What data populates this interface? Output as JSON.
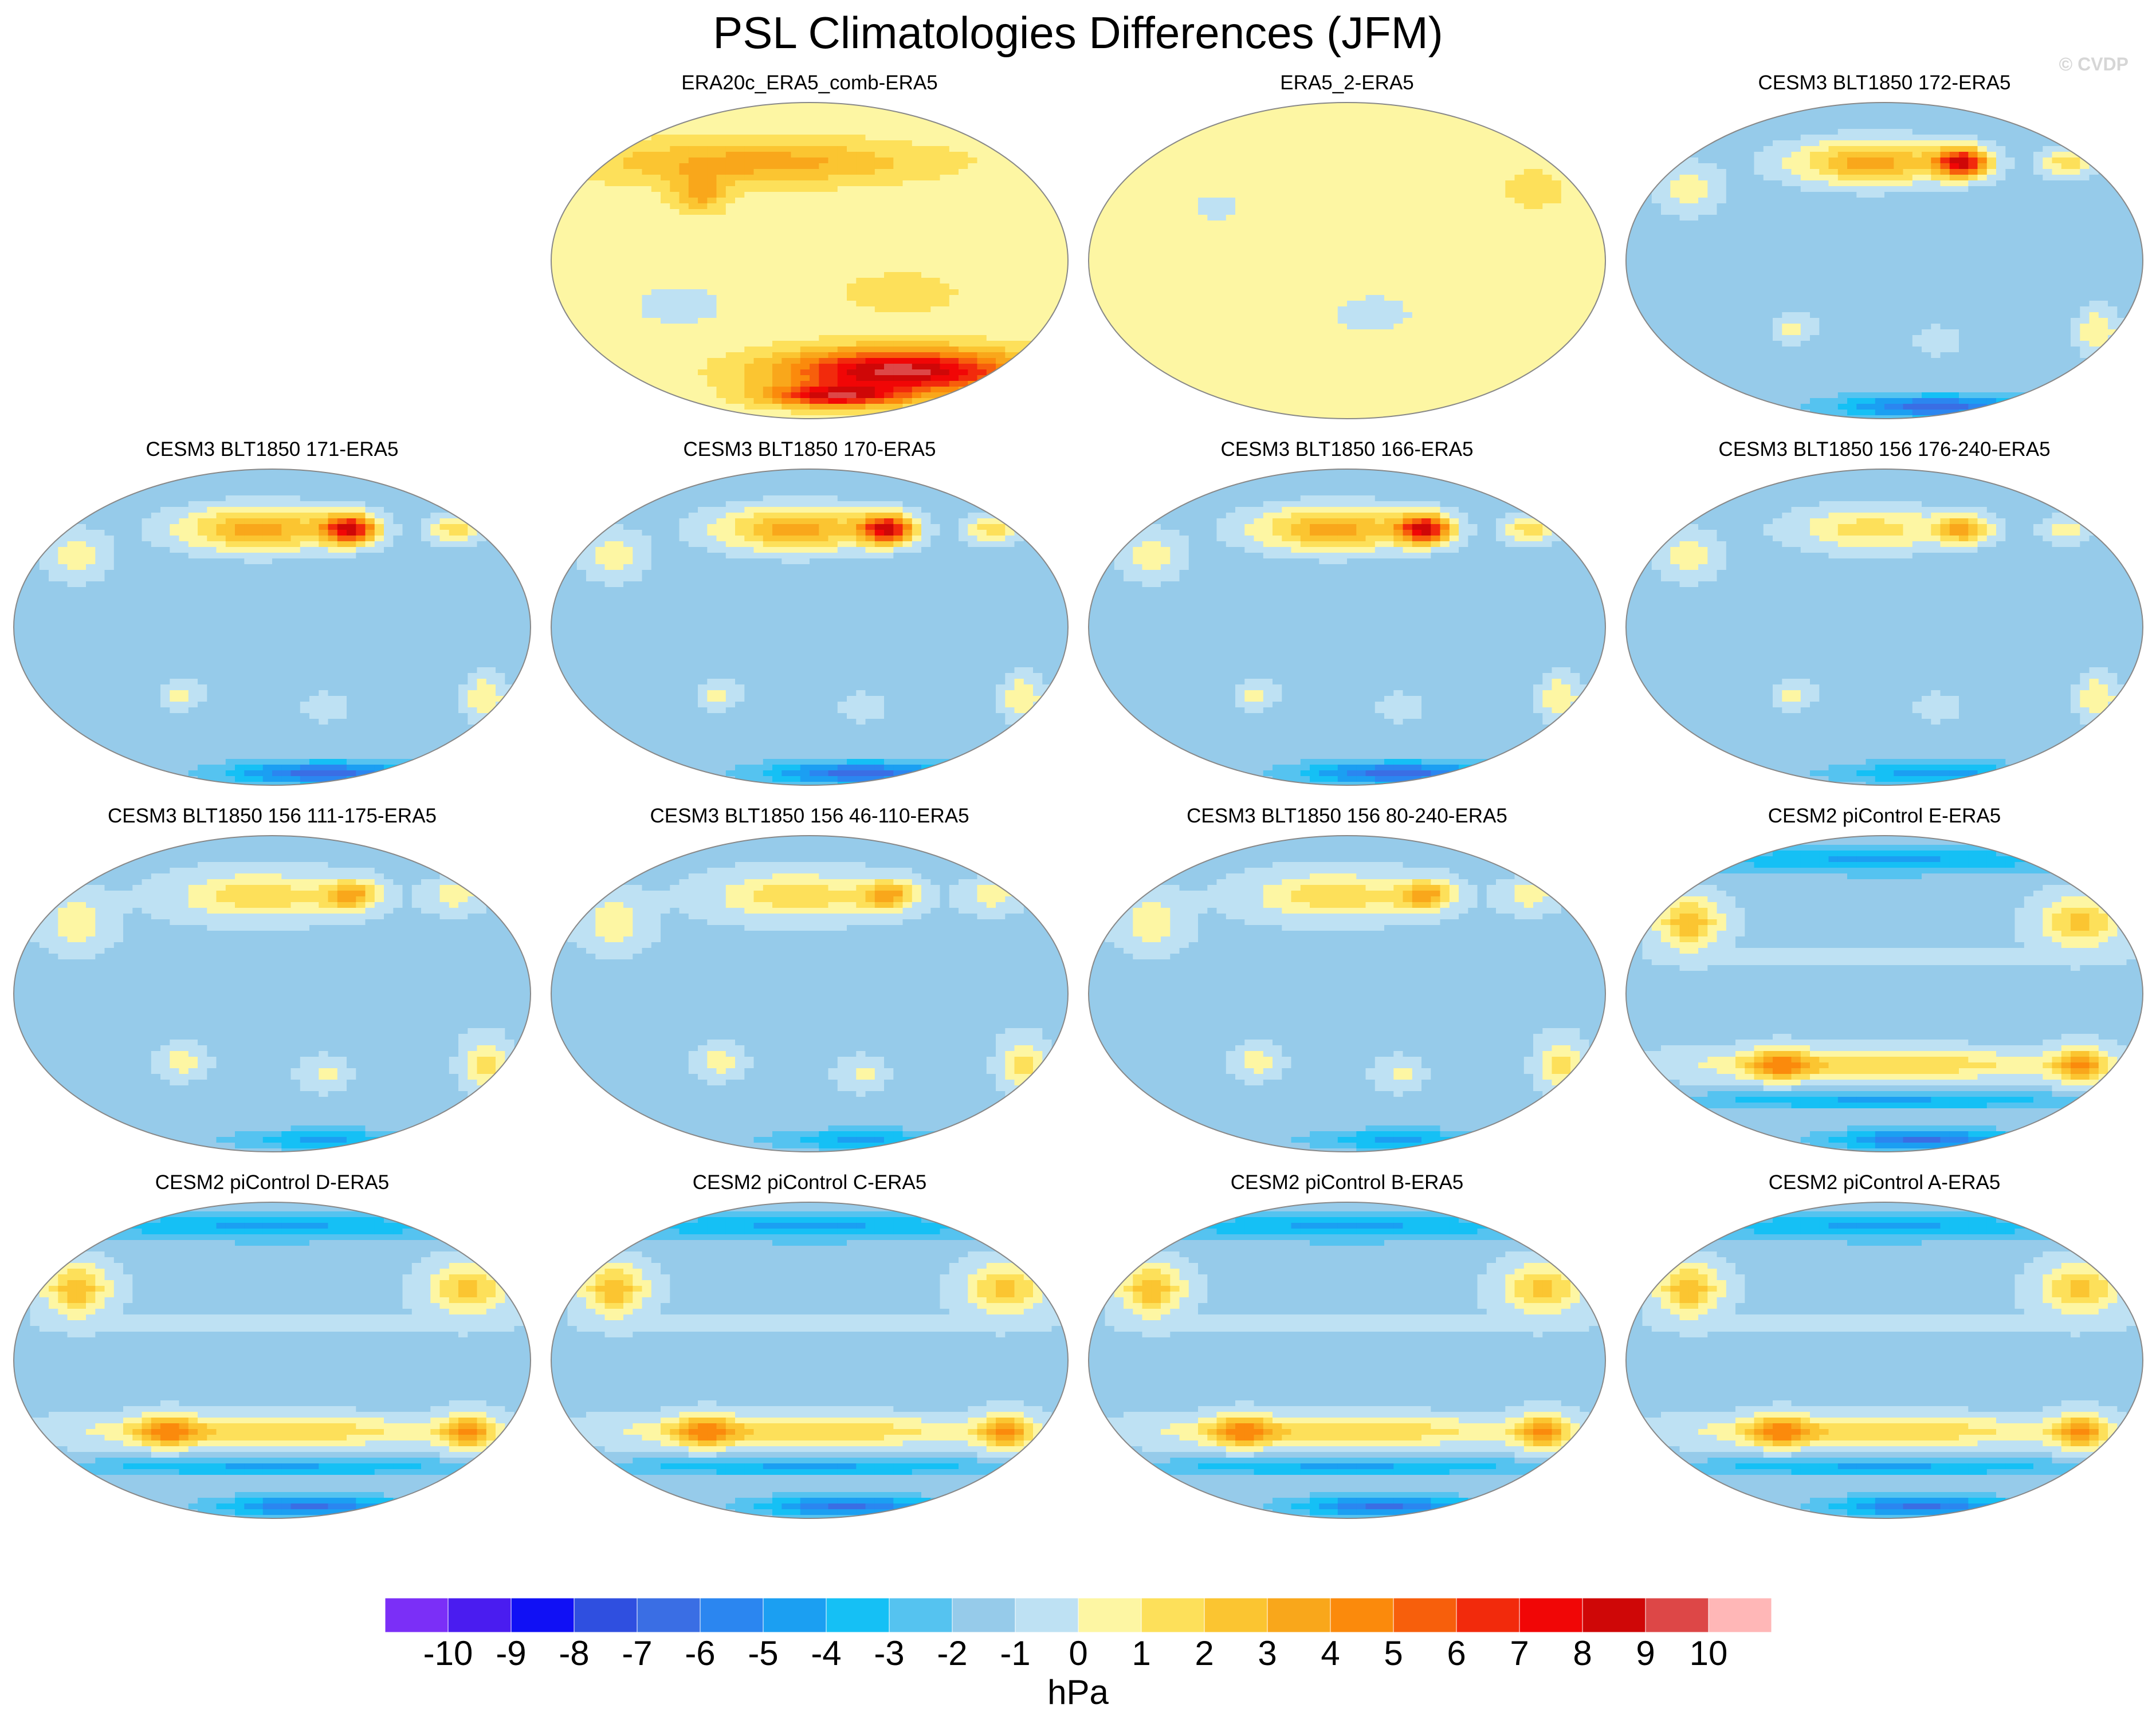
{
  "title": "PSL Climatologies Differences (JFM)",
  "watermark": "© CVDP",
  "chart_data": {
    "type": "heatmap",
    "title": "PSL Climatologies Differences (JFM)",
    "projection": "robinson",
    "central_longitude": 180,
    "season": "JFM",
    "grid": false,
    "colorbar": {
      "units": "hPa",
      "orientation": "horizontal",
      "placement": "bottom",
      "levels": [
        -10,
        -9,
        -8,
        -7,
        -6,
        -5,
        -4,
        -3,
        -2,
        -1,
        0,
        1,
        2,
        3,
        4,
        5,
        6,
        7,
        8,
        9,
        10
      ],
      "colors": [
        "#7b2ff7",
        "#4a1cf0",
        "#1010f5",
        "#2f4fe0",
        "#3a6ee4",
        "#2b86f0",
        "#1b9ff2",
        "#15c0f5",
        "#55c3f0",
        "#96cbea",
        "#bee1f3",
        "#fdf6a3",
        "#fde05a",
        "#fbc531",
        "#f9a71b",
        "#fb8a0c",
        "#f75f0c",
        "#f22a0c",
        "#f10606",
        "#cf0707",
        "#dd4747",
        "#ffb7b7"
      ]
    },
    "panels": [
      {
        "label": "ERA20c_ERA5_comb-ERA5",
        "background": 0.5,
        "features": [
          [
            -0.2,
            55,
            0.62,
            12,
            3
          ],
          [
            0.35,
            -62,
            0.45,
            12,
            9
          ],
          [
            0.1,
            -76,
            0.25,
            6,
            7
          ],
          [
            0.35,
            -18,
            0.2,
            10,
            1.5
          ],
          [
            -0.5,
            -25,
            0.15,
            10,
            -1.5
          ],
          [
            -0.42,
            38,
            0.1,
            10,
            3
          ]
        ]
      },
      {
        "label": "ERA5_2-ERA5",
        "background": 0.5,
        "features": [
          [
            0.1,
            -30,
            0.2,
            14,
            -0.8
          ],
          [
            -0.5,
            30,
            0.2,
            16,
            -0.6
          ],
          [
            0.72,
            40,
            0.1,
            10,
            1.5
          ]
        ]
      },
      {
        "label": "CESM3 BLT1850 172-ERA5",
        "background": -1.5,
        "features": [
          [
            -0.05,
            55,
            0.3,
            12,
            5
          ],
          [
            0.3,
            55,
            0.1,
            8,
            9
          ],
          [
            0.7,
            55,
            0.1,
            8,
            3
          ],
          [
            -0.75,
            40,
            0.12,
            14,
            2
          ],
          [
            -0.35,
            -38,
            0.08,
            8,
            2
          ],
          [
            0.2,
            -45,
            0.08,
            8,
            1.5
          ],
          [
            0.82,
            -40,
            0.08,
            14,
            2.5
          ],
          [
            0.2,
            -82,
            0.35,
            6,
            -5
          ]
        ]
      },
      {
        "label": "CESM3 BLT1850 171-ERA5",
        "background": -1.5,
        "features": [
          [
            -0.05,
            55,
            0.3,
            12,
            5
          ],
          [
            0.3,
            55,
            0.1,
            8,
            9
          ],
          [
            0.7,
            55,
            0.1,
            8,
            3
          ],
          [
            -0.75,
            40,
            0.12,
            14,
            2
          ],
          [
            -0.35,
            -38,
            0.08,
            8,
            2
          ],
          [
            0.2,
            -45,
            0.08,
            8,
            1.5
          ],
          [
            0.82,
            -40,
            0.08,
            14,
            2.5
          ],
          [
            0.2,
            -82,
            0.35,
            6,
            -5
          ]
        ]
      },
      {
        "label": "CESM3 BLT1850 170-ERA5",
        "background": -1.5,
        "features": [
          [
            -0.05,
            55,
            0.3,
            12,
            5
          ],
          [
            0.3,
            55,
            0.1,
            8,
            9
          ],
          [
            0.7,
            55,
            0.1,
            8,
            3
          ],
          [
            -0.75,
            40,
            0.12,
            14,
            2
          ],
          [
            -0.35,
            -38,
            0.08,
            8,
            2
          ],
          [
            0.2,
            -45,
            0.08,
            8,
            1.5
          ],
          [
            0.82,
            -40,
            0.08,
            14,
            2.5
          ],
          [
            0.2,
            -82,
            0.35,
            6,
            -5
          ]
        ]
      },
      {
        "label": "CESM3 BLT1850 166-ERA5",
        "background": -1.5,
        "features": [
          [
            -0.05,
            55,
            0.3,
            12,
            5
          ],
          [
            0.3,
            55,
            0.1,
            8,
            9
          ],
          [
            0.7,
            55,
            0.1,
            8,
            3
          ],
          [
            -0.75,
            40,
            0.12,
            14,
            2
          ],
          [
            -0.35,
            -38,
            0.08,
            8,
            2
          ],
          [
            0.2,
            -45,
            0.08,
            8,
            1.5
          ],
          [
            0.82,
            -40,
            0.08,
            14,
            2.5
          ],
          [
            0.2,
            -82,
            0.35,
            6,
            -5
          ]
        ]
      },
      {
        "label": "CESM3 BLT1850 156 176-240-ERA5",
        "background": -1.5,
        "features": [
          [
            -0.05,
            55,
            0.3,
            12,
            3
          ],
          [
            0.3,
            55,
            0.1,
            8,
            4.5
          ],
          [
            0.7,
            55,
            0.1,
            8,
            2
          ],
          [
            -0.75,
            40,
            0.12,
            14,
            2
          ],
          [
            -0.35,
            -38,
            0.08,
            8,
            2
          ],
          [
            0.2,
            -45,
            0.08,
            8,
            1.5
          ],
          [
            0.82,
            -40,
            0.08,
            14,
            2.5
          ],
          [
            0.2,
            -82,
            0.35,
            6,
            -3
          ]
        ]
      },
      {
        "label": "CESM3 BLT1850 156 111-175-ERA5",
        "background": -1.2,
        "features": [
          [
            -0.05,
            55,
            0.3,
            12,
            3
          ],
          [
            0.3,
            55,
            0.1,
            8,
            4.5
          ],
          [
            0.7,
            55,
            0.1,
            8,
            2
          ],
          [
            -0.75,
            40,
            0.12,
            14,
            2
          ],
          [
            -0.35,
            -38,
            0.08,
            8,
            2
          ],
          [
            0.2,
            -45,
            0.08,
            8,
            1.5
          ],
          [
            0.82,
            -40,
            0.08,
            14,
            2.5
          ],
          [
            0.2,
            -82,
            0.35,
            6,
            -3
          ]
        ]
      },
      {
        "label": "CESM3 BLT1850 156 46-110-ERA5",
        "background": -1.2,
        "features": [
          [
            -0.05,
            55,
            0.3,
            12,
            3
          ],
          [
            0.3,
            55,
            0.1,
            8,
            4.5
          ],
          [
            0.7,
            55,
            0.1,
            8,
            2
          ],
          [
            -0.75,
            40,
            0.12,
            14,
            2
          ],
          [
            -0.35,
            -38,
            0.08,
            8,
            2
          ],
          [
            0.2,
            -45,
            0.08,
            8,
            1.5
          ],
          [
            0.82,
            -40,
            0.08,
            14,
            2.5
          ],
          [
            0.2,
            -82,
            0.35,
            6,
            -3
          ]
        ]
      },
      {
        "label": "CESM3 BLT1850 156 80-240-ERA5",
        "background": -1.2,
        "features": [
          [
            -0.05,
            55,
            0.3,
            12,
            3
          ],
          [
            0.3,
            55,
            0.1,
            8,
            4.5
          ],
          [
            0.7,
            55,
            0.1,
            8,
            2
          ],
          [
            -0.75,
            40,
            0.12,
            14,
            2
          ],
          [
            -0.35,
            -38,
            0.08,
            8,
            2
          ],
          [
            0.2,
            -45,
            0.08,
            8,
            1.5
          ],
          [
            0.82,
            -40,
            0.08,
            14,
            2.5
          ],
          [
            0.2,
            -82,
            0.35,
            6,
            -3
          ]
        ]
      },
      {
        "label": "CESM2 piControl E-ERA5",
        "background": -1.2,
        "features": [
          [
            0,
            75,
            0.8,
            8,
            -3
          ],
          [
            -0.75,
            40,
            0.12,
            14,
            4
          ],
          [
            0.75,
            40,
            0.15,
            14,
            3.5
          ],
          [
            0,
            20,
            0.8,
            5,
            0.6
          ],
          [
            0,
            -40,
            0.75,
            8,
            3
          ],
          [
            -0.4,
            -40,
            0.12,
            9,
            4
          ],
          [
            0.75,
            -40,
            0.1,
            10,
            4.5
          ],
          [
            0,
            -60,
            0.8,
            5,
            -3
          ],
          [
            0.15,
            -82,
            0.35,
            6,
            -5
          ]
        ]
      },
      {
        "label": "CESM2 piControl D-ERA5",
        "background": -1.2,
        "features": [
          [
            0,
            75,
            0.8,
            8,
            -3
          ],
          [
            -0.75,
            40,
            0.12,
            14,
            4
          ],
          [
            0.75,
            40,
            0.15,
            14,
            3.5
          ],
          [
            0,
            20,
            0.8,
            5,
            0.6
          ],
          [
            0,
            -40,
            0.75,
            8,
            3
          ],
          [
            -0.4,
            -40,
            0.12,
            9,
            4
          ],
          [
            0.75,
            -40,
            0.1,
            10,
            4.5
          ],
          [
            0,
            -60,
            0.8,
            5,
            -3
          ],
          [
            0.15,
            -82,
            0.35,
            6,
            -5
          ]
        ]
      },
      {
        "label": "CESM2 piControl C-ERA5",
        "background": -1.2,
        "features": [
          [
            0,
            75,
            0.8,
            8,
            -3
          ],
          [
            -0.75,
            40,
            0.12,
            14,
            4
          ],
          [
            0.75,
            40,
            0.15,
            14,
            3.5
          ],
          [
            0,
            20,
            0.8,
            5,
            0.6
          ],
          [
            0,
            -40,
            0.75,
            8,
            3
          ],
          [
            -0.4,
            -40,
            0.12,
            9,
            4
          ],
          [
            0.75,
            -40,
            0.1,
            10,
            4.5
          ],
          [
            0,
            -60,
            0.8,
            5,
            -3
          ],
          [
            0.15,
            -82,
            0.35,
            6,
            -5
          ]
        ]
      },
      {
        "label": "CESM2 piControl B-ERA5",
        "background": -1.2,
        "features": [
          [
            0,
            75,
            0.8,
            8,
            -3
          ],
          [
            -0.75,
            40,
            0.12,
            14,
            4
          ],
          [
            0.75,
            40,
            0.15,
            14,
            3.5
          ],
          [
            0,
            20,
            0.8,
            5,
            0.6
          ],
          [
            0,
            -40,
            0.75,
            8,
            3
          ],
          [
            -0.4,
            -40,
            0.12,
            9,
            4
          ],
          [
            0.75,
            -40,
            0.1,
            10,
            4.5
          ],
          [
            0,
            -60,
            0.8,
            5,
            -3
          ],
          [
            0.15,
            -82,
            0.35,
            6,
            -5
          ]
        ]
      },
      {
        "label": "CESM2 piControl A-ERA5",
        "background": -1.2,
        "features": [
          [
            0,
            75,
            0.8,
            8,
            -3
          ],
          [
            -0.75,
            40,
            0.12,
            14,
            4
          ],
          [
            0.75,
            40,
            0.15,
            14,
            3.5
          ],
          [
            0,
            20,
            0.8,
            5,
            0.6
          ],
          [
            0,
            -40,
            0.75,
            8,
            3
          ],
          [
            -0.4,
            -40,
            0.12,
            9,
            4
          ],
          [
            0.75,
            -40,
            0.1,
            10,
            4.5
          ],
          [
            0,
            -60,
            0.8,
            5,
            -3
          ],
          [
            0.15,
            -82,
            0.35,
            6,
            -5
          ]
        ]
      }
    ]
  }
}
